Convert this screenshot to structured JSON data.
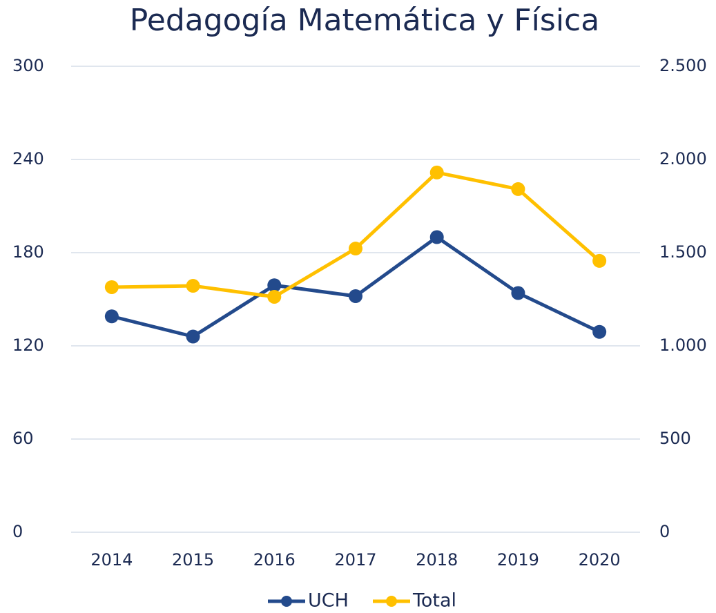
{
  "chart_data": {
    "type": "line",
    "title": "Pedagogía Matemática y Física",
    "categories": [
      "2014",
      "2015",
      "2016",
      "2017",
      "2018",
      "2019",
      "2020"
    ],
    "series": [
      {
        "name": "UCH",
        "color": "#234a8c",
        "values": [
          139,
          126,
          159,
          152,
          190,
          154,
          129
        ]
      },
      {
        "name": "Total",
        "color": "#ffc000",
        "axis": "y2",
        "values": [
          1315,
          1322,
          1263,
          1522,
          1930,
          1841,
          1456
        ]
      }
    ],
    "ylim": [
      0,
      300
    ],
    "yticks": [
      0,
      60,
      120,
      180,
      240,
      300
    ],
    "y2lim": [
      0,
      2500
    ],
    "y2ticks": [
      0,
      500,
      {
        "value": 1000,
        "label": "1.000"
      },
      {
        "value": 1500,
        "label": "1.500"
      },
      {
        "value": 2000,
        "label": "2.000"
      },
      {
        "value": 2500,
        "label": "2.500"
      }
    ],
    "grid": true,
    "legend": "bottom"
  }
}
